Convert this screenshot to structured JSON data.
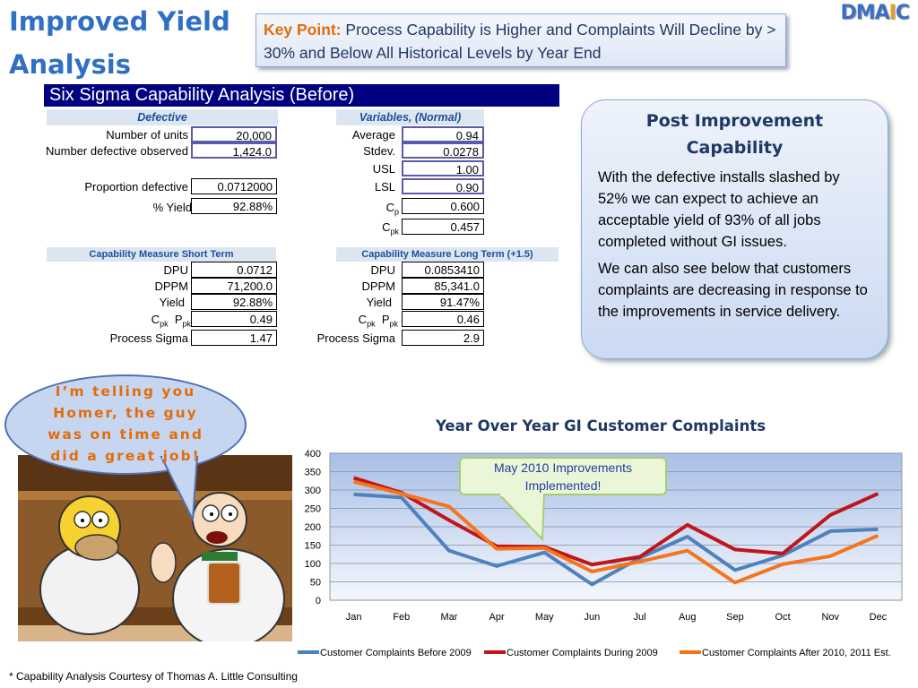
{
  "header": {
    "title_line1": "Improved Yield",
    "title_line2": "Analysis",
    "key_point_label": "Key Point:",
    "key_point_text": "Process Capability is Higher and Complaints Will Decline by > 30% and Below All Historical Levels by Year End",
    "logo_dm": "DMA",
    "logo_i": "I",
    "logo_c": "C"
  },
  "capability": {
    "title": "Six Sigma Capability Analysis (Before)",
    "defective": {
      "header": "Defective",
      "rows": [
        {
          "label": "Number of units",
          "value": "20,000"
        },
        {
          "label": "Number defective observed",
          "value": "1,424.0"
        },
        {
          "label": "Proportion defective",
          "value": "0.0712000"
        },
        {
          "label": "% Yield",
          "value": "92.88%"
        }
      ]
    },
    "variables": {
      "header": "Variables, (Normal)",
      "rows": [
        {
          "label": "Average",
          "value": "0.94"
        },
        {
          "label": "Stdev.",
          "value": "0.0278"
        },
        {
          "label": "USL",
          "value": "1.00"
        },
        {
          "label": "LSL",
          "value": "0.90"
        },
        {
          "label": "C",
          "sub": "p",
          "value": "0.600"
        },
        {
          "label": "C",
          "sub": "pk",
          "value": "0.457"
        }
      ]
    },
    "short_term": {
      "header": "Capability Measure Short Term",
      "rows": [
        {
          "label": "DPU",
          "value": "0.0712"
        },
        {
          "label": "DPPM",
          "value": "71,200.0"
        },
        {
          "label": "Yield",
          "value": "92.88%"
        },
        {
          "label": "Cpk Ppk",
          "value": "0.49"
        },
        {
          "label": "Process Sigma",
          "value": "1.47"
        }
      ]
    },
    "long_term": {
      "header": "Capability Measure Long Term (+1.5)",
      "rows": [
        {
          "label": "DPU",
          "value": "0.0853410"
        },
        {
          "label": "DPPM",
          "value": "85,341.0"
        },
        {
          "label": "Yield",
          "value": "91.47%"
        },
        {
          "label": "Cpk Ppk",
          "value": "0.46"
        },
        {
          "label": "Process Sigma",
          "value": "2.9"
        }
      ]
    },
    "cpk_c": "C",
    "cpk_sub": "pk",
    "ppk_p": "P",
    "ppk_sub": "pk"
  },
  "post": {
    "heading": "Post Improvement Capability",
    "para1": "With the defective installs slashed by 52% we can expect to achieve an acceptable yield of 93% of all jobs completed without GI issues.",
    "para2": "We can also see below that customers complaints are decreasing in response to the improvements in service delivery."
  },
  "bubble": {
    "text": "I’m telling you Homer, the guy was on time and did a great job!"
  },
  "chart_data": {
    "type": "line",
    "title": "Year Over Year GI Customer Complaints",
    "categories": [
      "Jan",
      "Feb",
      "Mar",
      "Apr",
      "May",
      "Jun",
      "Jul",
      "Aug",
      "Sep",
      "Oct",
      "Nov",
      "Dec"
    ],
    "ylim": [
      0,
      400
    ],
    "yticks": [
      0,
      50,
      100,
      150,
      200,
      250,
      300,
      350,
      400
    ],
    "grid": true,
    "legend": "bottom",
    "annotation": "May 2010 Improvements Implemented!",
    "series": [
      {
        "name": "Customer Complaints Before 2009",
        "color": "#4f81bd",
        "values": [
          288,
          280,
          135,
          93,
          130,
          43,
          115,
          173,
          82,
          122,
          188,
          193
        ]
      },
      {
        "name": "Customer Complaints During 2009",
        "color": "#c0151b",
        "values": [
          333,
          293,
          218,
          147,
          145,
          97,
          118,
          205,
          138,
          127,
          232,
          290
        ]
      },
      {
        "name": "Customer Complaints After 2010, 2011 Est.",
        "color": "#f5741c",
        "values": [
          323,
          290,
          255,
          140,
          142,
          78,
          105,
          135,
          48,
          98,
          120,
          176
        ]
      }
    ]
  },
  "footnote": "* Capability Analysis Courtesy of Thomas  A. Little  Consulting"
}
